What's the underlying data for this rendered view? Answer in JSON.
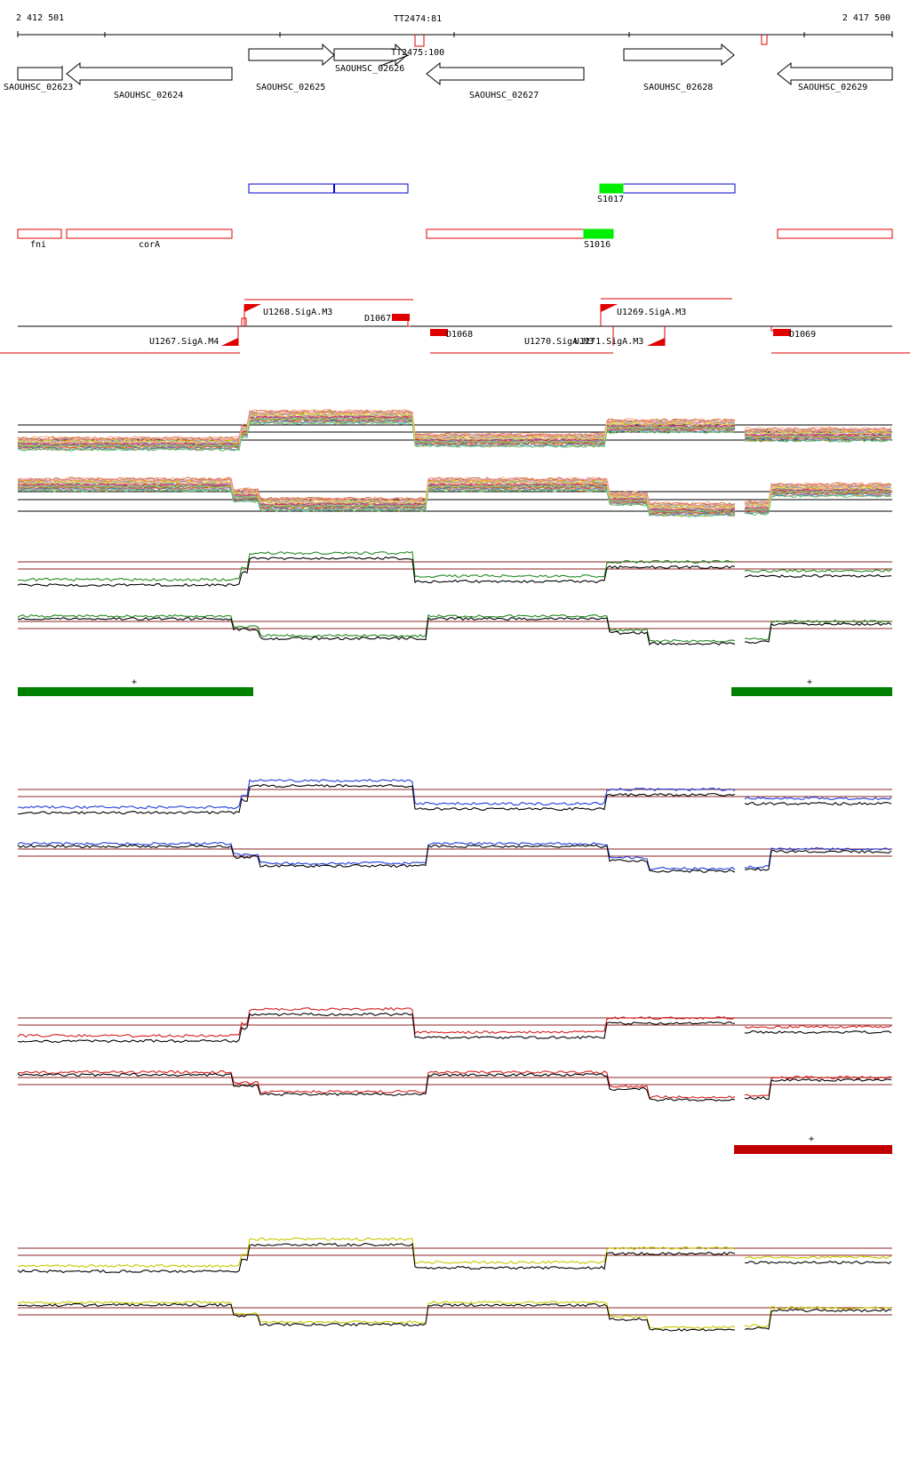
{
  "ruler": {
    "start_label": "2 412 501",
    "end_label": "2 417 500",
    "start_bp": 2412501,
    "end_bp": 2417500
  },
  "terminators": [
    {
      "label": "TT2474:81",
      "bp": 2414797
    },
    {
      "label": "TT2475:100",
      "bp": 2414797
    },
    {
      "bp": 2416900
    }
  ],
  "genes": [
    {
      "label": "SAOUHSC_02623",
      "start": 2412501,
      "end": 2412750,
      "strand": "+"
    },
    {
      "label": "SAOUHSC_02624",
      "start": 2412780,
      "end": 2413733,
      "strand": "-"
    },
    {
      "label": "SAOUHSC_02625",
      "start": 2413833,
      "end": 2414328,
      "strand": "+"
    },
    {
      "label": "SAOUHSC_02626",
      "start": 2414328,
      "end": 2414753,
      "strand": "+"
    },
    {
      "label": "SAOUHSC_02627",
      "start": 2414690,
      "end": 2415608,
      "strand": "-"
    },
    {
      "label": "SAOUHSC_02628",
      "start": 2415880,
      "end": 2416520,
      "strand": "+"
    },
    {
      "label": "SAOUHSC_02629",
      "start": 2416953,
      "end": 2417500,
      "strand": "-"
    }
  ],
  "operons_plus": [
    {
      "start": 2413833,
      "end": 2414753
    },
    {
      "start": 2415820,
      "end": 2416520,
      "highlight_end": 2415950,
      "highlight_label": "S1017"
    }
  ],
  "operons_minus": [
    {
      "label": "fni",
      "start": 2412501,
      "end": 2412750
    },
    {
      "label": "corA",
      "start": 2412780,
      "end": 2413733
    },
    {
      "start": 2414690,
      "end": 2415873,
      "highlight_start": 2415678,
      "highlight_label": "S1016"
    },
    {
      "start": 2416953,
      "end": 2417500
    }
  ],
  "tss": [
    {
      "label": "U1267.SigA.M4"
    },
    {
      "label": "U1268.SigA.M3"
    },
    {
      "label": "U1269.SigA.M3"
    },
    {
      "label": "U1270.SigA.M3"
    },
    {
      "label": "U1271.SigA.M3"
    }
  ],
  "segments": [
    {
      "label": "D1067"
    },
    {
      "label": "D1068"
    },
    {
      "label": "D1069"
    }
  ],
  "condition_bars": [
    {
      "symbol": "+",
      "color": "#008000"
    },
    {
      "symbol": "+",
      "color": "#008000"
    },
    {
      "symbol": "+",
      "color": "#c00000"
    }
  ],
  "colors": {
    "gene_outline": "#000000",
    "operon_plus": "#0000cc",
    "operon_minus": "#e00000",
    "highlight": "#00ee00",
    "tss_flag": "#e00000",
    "threshold": "#8b2323",
    "panel_green": "#228b22",
    "panel_blue": "#1f3ddb",
    "panel_red": "#d81f1f",
    "panel_yellow": "#c8c800",
    "bar_green": "#008000",
    "bar_red": "#c00000"
  }
}
